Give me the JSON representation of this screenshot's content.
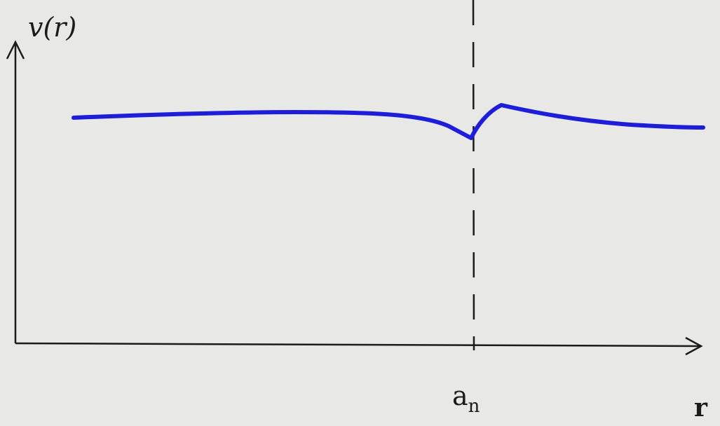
{
  "axes": {
    "y_label": "v(r)",
    "x_label": "r"
  },
  "marker": {
    "base": "a",
    "subscript": "n"
  }
}
